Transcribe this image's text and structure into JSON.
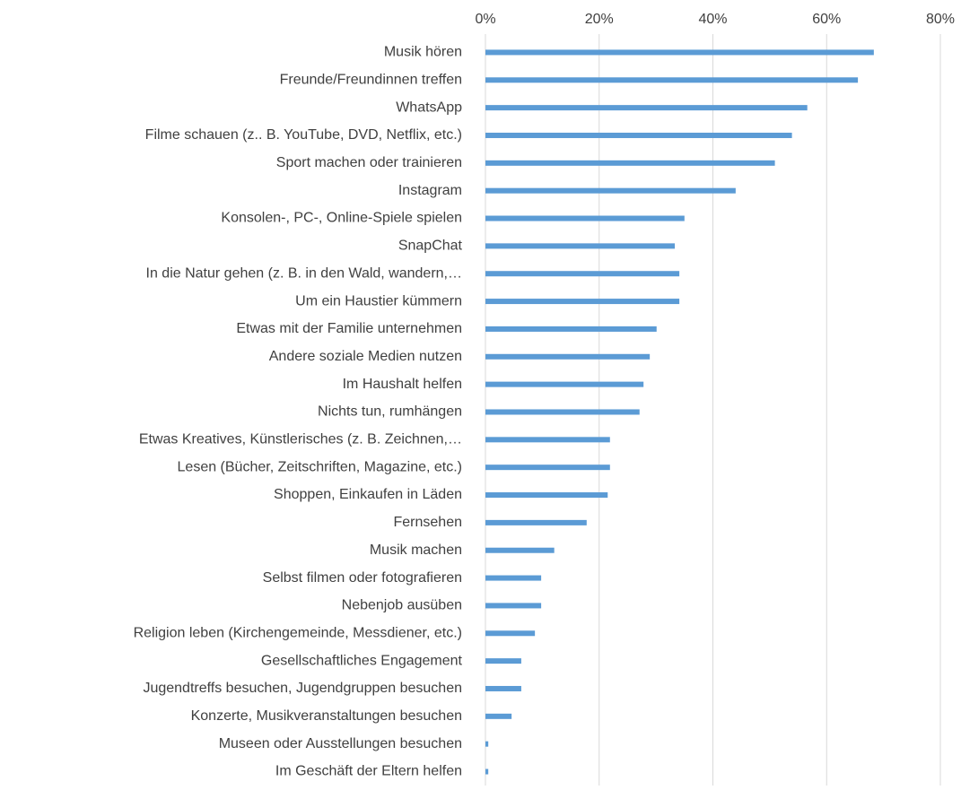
{
  "chart_data": {
    "type": "hbar",
    "categories": [
      "Musik hören",
      "Freunde/Freundinnen treffen",
      "WhatsApp",
      "Filme schauen (z.. B. YouTube, DVD, Netflix, etc.)",
      "Sport machen oder trainieren",
      "Instagram",
      "Konsolen-, PC-, Online-Spiele spielen",
      "SnapChat",
      "In die Natur gehen (z. B. in den Wald, wandern,…",
      "Um ein Haustier kümmern",
      "Etwas mit der Familie unternehmen",
      "Andere soziale Medien nutzen",
      "Im Haushalt helfen",
      "Nichts tun, rumhängen",
      "Etwas Kreatives, Künstlerisches (z. B. Zeichnen,…",
      "Lesen (Bücher, Zeitschriften, Magazine, etc.)",
      "Shoppen, Einkaufen in Läden",
      "Fernsehen",
      "Musik machen",
      "Selbst filmen oder fotografieren",
      "Nebenjob ausüben",
      "Religion leben (Kirchengemeinde, Messdiener, etc.)",
      "Gesellschaftliches Engagement",
      "Jugendtreffs besuchen, Jugendgruppen besuchen",
      "Konzerte, Musikveranstaltungen besuchen",
      "Museen oder Ausstellungen besuchen",
      "Im Geschäft der Eltern helfen"
    ],
    "values": [
      68.3,
      65.5,
      56.6,
      53.9,
      50.9,
      44.0,
      35.0,
      33.3,
      34.1,
      34.1,
      30.1,
      28.9,
      27.8,
      27.1,
      21.9,
      21.9,
      21.5,
      17.8,
      12.1,
      9.8,
      9.8,
      8.7,
      6.3,
      6.3,
      4.6,
      0.5,
      0.5
    ],
    "color": "#5b9bd5",
    "xlim": [
      0,
      80
    ],
    "xticks": [
      {
        "value": 0,
        "label": "0%"
      },
      {
        "value": 20,
        "label": "20%"
      },
      {
        "value": 40,
        "label": "40%"
      },
      {
        "value": 60,
        "label": "60%"
      },
      {
        "value": 80,
        "label": "80%"
      }
    ],
    "grid": true
  }
}
